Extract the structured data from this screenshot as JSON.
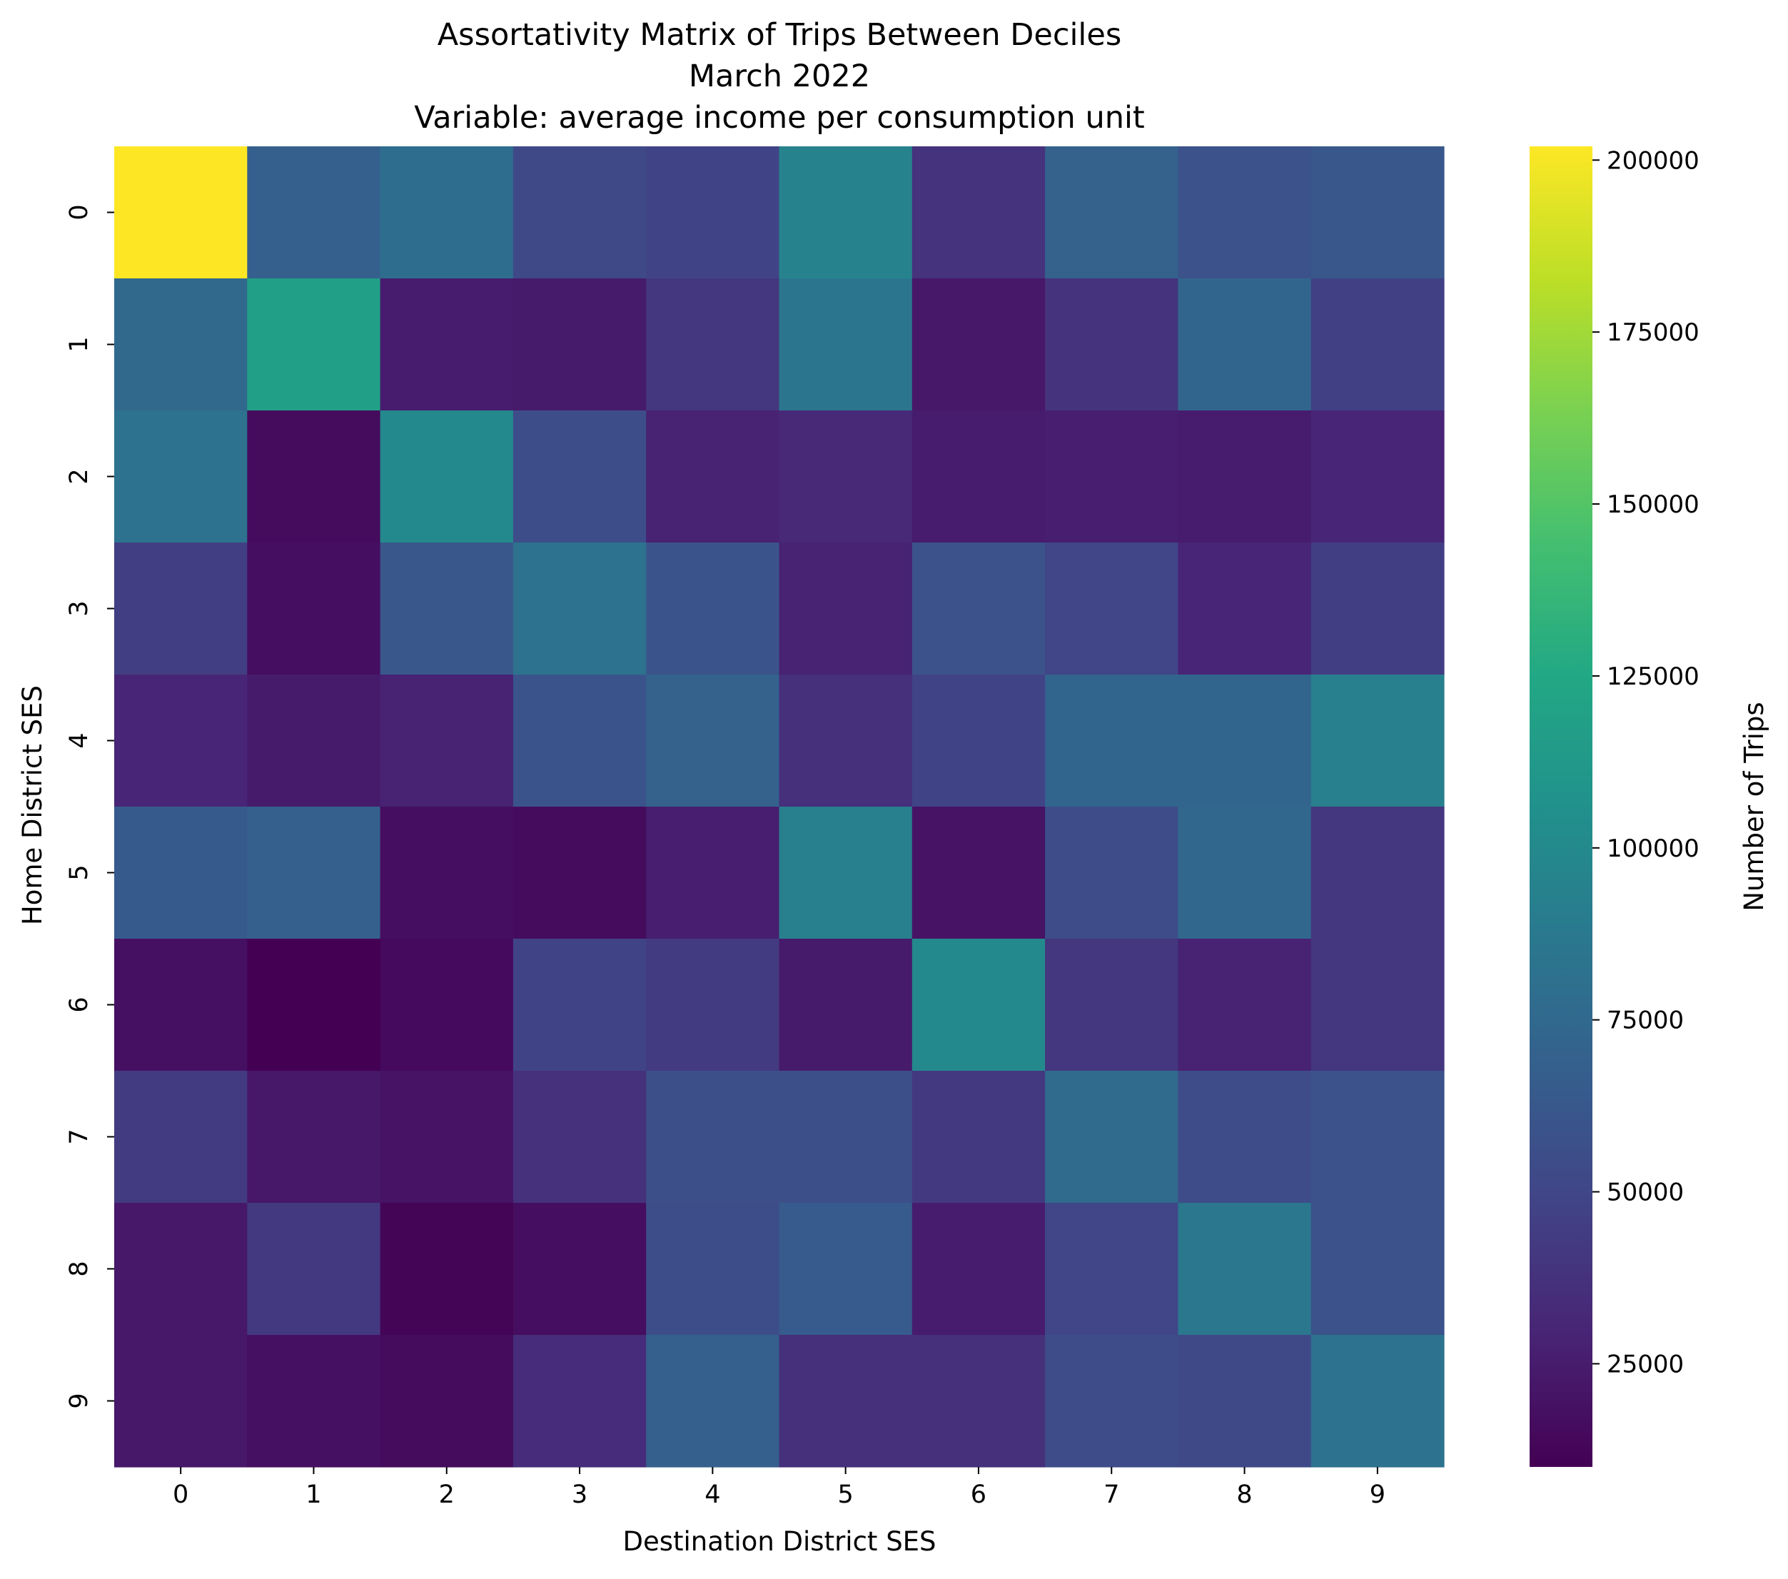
{
  "chart_data": {
    "type": "heatmap",
    "title_lines": [
      "Assortativity Matrix of Trips Between Deciles",
      "March 2022",
      "Variable: average income per consumption unit"
    ],
    "xlabel": "Destination District SES",
    "ylabel": "Home District SES",
    "colorbar_label": "Number of Trips",
    "x_categories": [
      "0",
      "1",
      "2",
      "3",
      "4",
      "5",
      "6",
      "7",
      "8",
      "9"
    ],
    "y_categories": [
      "0",
      "1",
      "2",
      "3",
      "4",
      "5",
      "6",
      "7",
      "8",
      "9"
    ],
    "colormap": "viridis",
    "value_range": [
      10000,
      202000
    ],
    "colorbar_ticks": [
      "25000",
      "50000",
      "75000",
      "100000",
      "125000",
      "150000",
      "175000",
      "200000"
    ],
    "values": [
      [
        202000,
        68000,
        78000,
        52000,
        48000,
        95000,
        38000,
        70000,
        58000,
        62000
      ],
      [
        75000,
        118000,
        25000,
        24000,
        40000,
        85000,
        22000,
        38000,
        72000,
        46000
      ],
      [
        82000,
        16000,
        100000,
        55000,
        28000,
        32000,
        25000,
        26000,
        25000,
        30000
      ],
      [
        45000,
        17000,
        62000,
        82000,
        60000,
        28000,
        58000,
        50000,
        30000,
        45000
      ],
      [
        30000,
        24000,
        28000,
        60000,
        70000,
        36000,
        48000,
        72000,
        72000,
        92000
      ],
      [
        64000,
        68000,
        17000,
        16000,
        26000,
        92000,
        20000,
        54000,
        74000,
        40000
      ],
      [
        18000,
        10000,
        15000,
        48000,
        43000,
        24000,
        100000,
        40000,
        28000,
        40000
      ],
      [
        43000,
        22000,
        20000,
        37000,
        56000,
        56000,
        42000,
        76000,
        54000,
        58000
      ],
      [
        22000,
        42000,
        12000,
        17000,
        55000,
        65000,
        25000,
        50000,
        86000,
        58000
      ],
      [
        22000,
        18000,
        16000,
        34000,
        68000,
        36000,
        36000,
        54000,
        52000,
        82000
      ]
    ]
  }
}
